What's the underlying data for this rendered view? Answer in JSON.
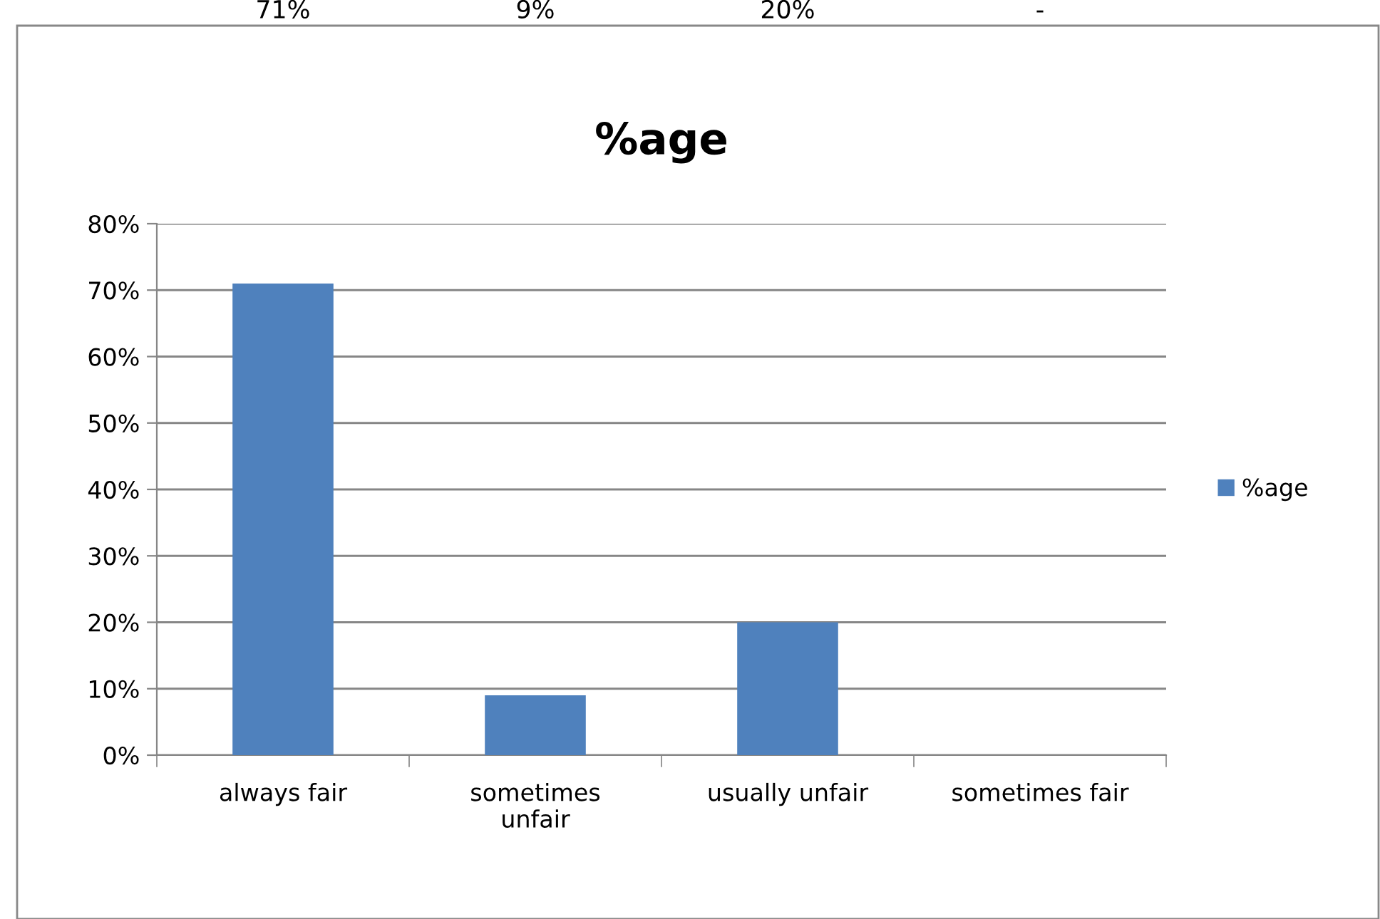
{
  "chart_data": {
    "type": "bar",
    "title": "%age",
    "categories": [
      "always fair",
      "sometimes unfair",
      "usually unfair",
      "sometimes fair"
    ],
    "series": [
      {
        "name": "%age",
        "color": "#4f81bd",
        "values": [
          71,
          9,
          20,
          null
        ],
        "value_labels": [
          "71%",
          "9%",
          "20%",
          "-"
        ]
      }
    ],
    "ylim": [
      0,
      80
    ],
    "yticks": [
      {
        "value": 0,
        "label": "0%"
      },
      {
        "value": 10,
        "label": "10%"
      },
      {
        "value": 20,
        "label": "20%"
      },
      {
        "value": 30,
        "label": "30%"
      },
      {
        "value": 40,
        "label": "40%"
      },
      {
        "value": 50,
        "label": "50%"
      },
      {
        "value": 60,
        "label": "60%"
      },
      {
        "value": 70,
        "label": "70%"
      },
      {
        "value": 80,
        "label": "80%"
      }
    ],
    "grid": "y",
    "legend": "right"
  }
}
